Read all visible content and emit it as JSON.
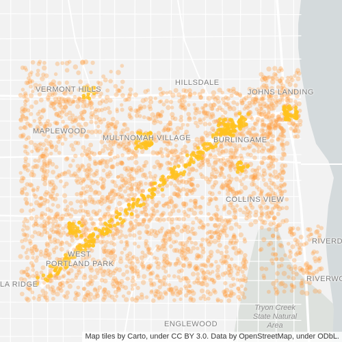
{
  "map": {
    "place_labels": {
      "vermont_hills": "VERMONT HILLS",
      "hillsdale": "HILLSDALE",
      "johns_landing": "JOHNS LANDING",
      "maplewood": "MAPLEWOOD",
      "multnomah_village": "MULTNOMAH VILLAGE",
      "burlingame": "BURLINGAME",
      "collins_view": "COLLINS VIEW",
      "riverdale": "RIVERDALE",
      "west_portland_park_line1": "WEST",
      "west_portland_park_line2": "PORTLAND PARK",
      "arnold_creek_tail": "LA RIDGE",
      "riverwood": "RIVERWOOD",
      "englewood": "ENGLEWOOD"
    },
    "park_label": {
      "line1": "Tryon Creek",
      "line2": "State Natural",
      "line3": "Area"
    },
    "attribution": "Map tiles by Carto, under CC BY 3.0. Data by OpenStreetMap, under ODbL.",
    "colors": {
      "background": "#f2f2f2",
      "water": "#d4dadc",
      "park": "#dde1dd",
      "road": "#ffffff",
      "point": "#ff9a3c",
      "point_highlight": "#ffc21f"
    },
    "layers": [
      "basemap",
      "water",
      "park",
      "roads",
      "heat-points",
      "labels"
    ]
  }
}
